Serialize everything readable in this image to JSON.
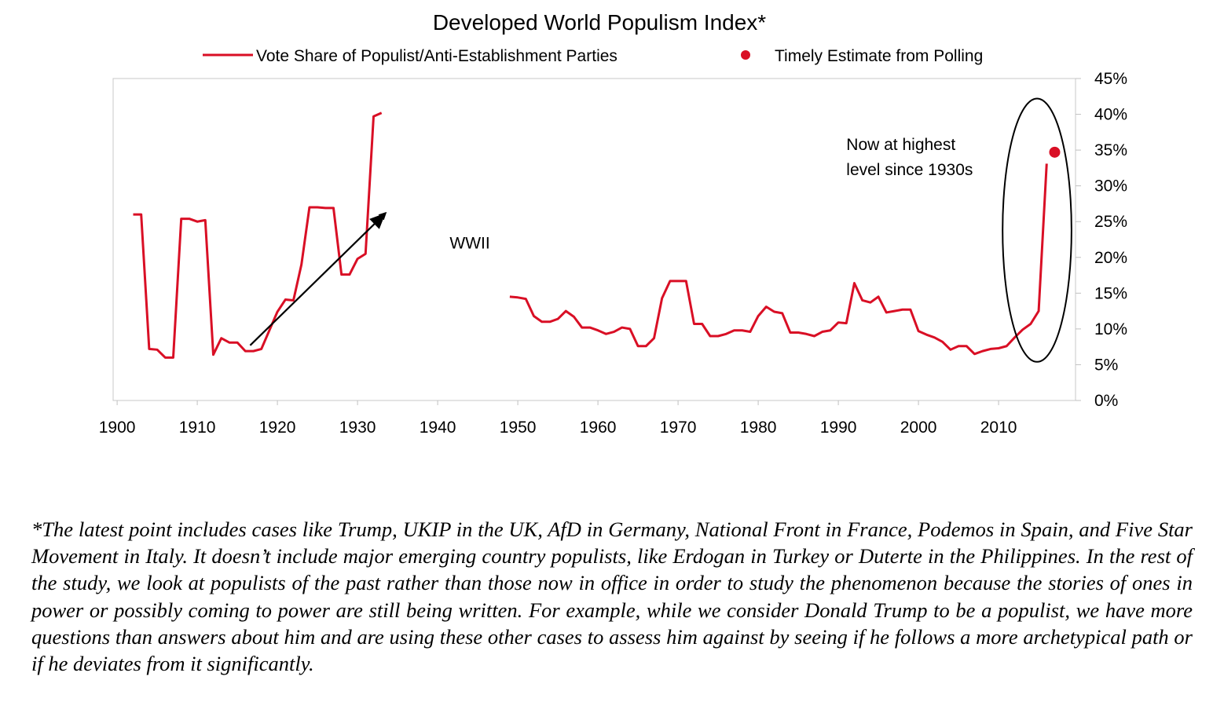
{
  "chart_data": {
    "type": "line",
    "title": "Developed World Populism Index*",
    "xlabel": "",
    "ylabel": "",
    "xlim": [
      1899.5,
      2019.6
    ],
    "ylim": [
      0,
      45
    ],
    "x_ticks": [
      1900,
      1910,
      1920,
      1930,
      1940,
      1950,
      1960,
      1970,
      1980,
      1990,
      2000,
      2010
    ],
    "x_tick_labels": [
      "1900",
      "1910",
      "1920",
      "1930",
      "1940",
      "1950",
      "1960",
      "1970",
      "1980",
      "1990",
      "2000",
      "2010"
    ],
    "y_ticks": [
      0,
      5,
      10,
      15,
      20,
      25,
      30,
      35,
      40,
      45
    ],
    "y_tick_labels": [
      "0%",
      "5%",
      "10%",
      "15%",
      "20%",
      "25%",
      "30%",
      "35%",
      "40%",
      "45%"
    ],
    "y_axis_side": "right",
    "grid": false,
    "legend_placement": "top",
    "colors": {
      "series": "#d90f25",
      "annotation": "#000000",
      "axis": "#c0c0c0"
    },
    "series": [
      {
        "name": "Vote Share of Populist/Anti-Establishment Parties",
        "style": "line",
        "segments": [
          [
            [
              1902,
              26.0
            ],
            [
              1903,
              26.0
            ],
            [
              1904,
              7.2
            ],
            [
              1905,
              7.1
            ],
            [
              1906,
              6.0
            ],
            [
              1907,
              6.0
            ],
            [
              1908,
              25.4
            ],
            [
              1909,
              25.4
            ],
            [
              1910,
              25.0
            ],
            [
              1911,
              25.2
            ],
            [
              1912,
              6.4
            ],
            [
              1913,
              8.7
            ],
            [
              1914,
              8.1
            ],
            [
              1915,
              8.1
            ],
            [
              1916,
              6.9
            ],
            [
              1917,
              6.9
            ],
            [
              1918,
              7.2
            ],
            [
              1919,
              9.8
            ],
            [
              1920,
              12.4
            ],
            [
              1921,
              14.1
            ],
            [
              1922,
              14.0
            ],
            [
              1923,
              19.0
            ],
            [
              1924,
              27.0
            ],
            [
              1925,
              27.0
            ],
            [
              1926,
              26.9
            ],
            [
              1927,
              26.9
            ],
            [
              1928,
              17.6
            ],
            [
              1929,
              17.6
            ],
            [
              1930,
              19.8
            ],
            [
              1931,
              20.5
            ],
            [
              1932,
              39.7
            ],
            [
              1933,
              40.2
            ]
          ],
          [
            [
              1949,
              14.5
            ],
            [
              1950,
              14.4
            ],
            [
              1951,
              14.2
            ],
            [
              1952,
              11.8
            ],
            [
              1953,
              11.0
            ],
            [
              1954,
              11.0
            ],
            [
              1955,
              11.4
            ],
            [
              1956,
              12.5
            ],
            [
              1957,
              11.7
            ],
            [
              1958,
              10.2
            ],
            [
              1959,
              10.2
            ],
            [
              1960,
              9.8
            ],
            [
              1961,
              9.3
            ],
            [
              1962,
              9.6
            ],
            [
              1963,
              10.2
            ],
            [
              1964,
              10.0
            ],
            [
              1965,
              7.6
            ],
            [
              1966,
              7.6
            ],
            [
              1967,
              8.7
            ],
            [
              1968,
              14.3
            ],
            [
              1969,
              16.7
            ],
            [
              1970,
              16.7
            ],
            [
              1971,
              16.7
            ],
            [
              1972,
              10.7
            ],
            [
              1973,
              10.7
            ],
            [
              1974,
              9.0
            ],
            [
              1975,
              9.0
            ],
            [
              1976,
              9.3
            ],
            [
              1977,
              9.8
            ],
            [
              1978,
              9.8
            ],
            [
              1979,
              9.6
            ],
            [
              1980,
              11.8
            ],
            [
              1981,
              13.1
            ],
            [
              1982,
              12.4
            ],
            [
              1983,
              12.2
            ],
            [
              1984,
              9.5
            ],
            [
              1985,
              9.5
            ],
            [
              1986,
              9.3
            ],
            [
              1987,
              9.0
            ],
            [
              1988,
              9.6
            ],
            [
              1989,
              9.8
            ],
            [
              1990,
              10.9
            ],
            [
              1991,
              10.8
            ],
            [
              1992,
              16.4
            ],
            [
              1993,
              14.0
            ],
            [
              1994,
              13.7
            ],
            [
              1995,
              14.5
            ],
            [
              1996,
              12.3
            ],
            [
              1997,
              12.5
            ],
            [
              1998,
              12.7
            ],
            [
              1999,
              12.7
            ],
            [
              2000,
              9.7
            ],
            [
              2001,
              9.2
            ],
            [
              2002,
              8.8
            ],
            [
              2003,
              8.2
            ],
            [
              2004,
              7.1
            ],
            [
              2005,
              7.6
            ],
            [
              2006,
              7.6
            ],
            [
              2007,
              6.5
            ],
            [
              2008,
              6.9
            ],
            [
              2009,
              7.2
            ],
            [
              2010,
              7.3
            ],
            [
              2011,
              7.6
            ],
            [
              2012,
              8.8
            ],
            [
              2013,
              9.9
            ],
            [
              2014,
              10.7
            ],
            [
              2015,
              12.5
            ],
            [
              2016,
              33.1
            ]
          ]
        ]
      },
      {
        "name": "Timely Estimate from Polling",
        "style": "point",
        "points": [
          [
            2017,
            34.7
          ]
        ]
      }
    ],
    "annotations": [
      {
        "type": "text",
        "text": "WWII",
        "x": 1941.5,
        "y": 22
      },
      {
        "type": "text",
        "lines": [
          "Now at highest",
          "level since 1930s"
        ],
        "x": 1991,
        "y": 35
      },
      {
        "type": "arrow",
        "from": [
          1916.6,
          7.7
        ],
        "to": [
          1933.5,
          26.2
        ]
      },
      {
        "type": "ellipse",
        "center": [
          2014.8,
          23.8
        ],
        "radius_years": 4.3,
        "radius_pct": 18.4
      }
    ]
  },
  "footnote": "*The latest point includes cases like Trump, UKIP in the UK, AfD in Germany, National Front in France, Podemos in Spain, and Five Star Movement in Italy. It doesn’t include major emerging country populists, like Erdogan in Turkey or Duterte in the Philippines. In the rest of the study, we look at populists of the past rather than those now in office in order to study the phenomenon because the stories of ones in power or possibly coming to power are still being written.  For example, while we consider Donald Trump to be a populist, we have more questions than answers about him and are using these other cases to assess him against by seeing if he follows a more archetypical path or if he deviates from it significantly."
}
